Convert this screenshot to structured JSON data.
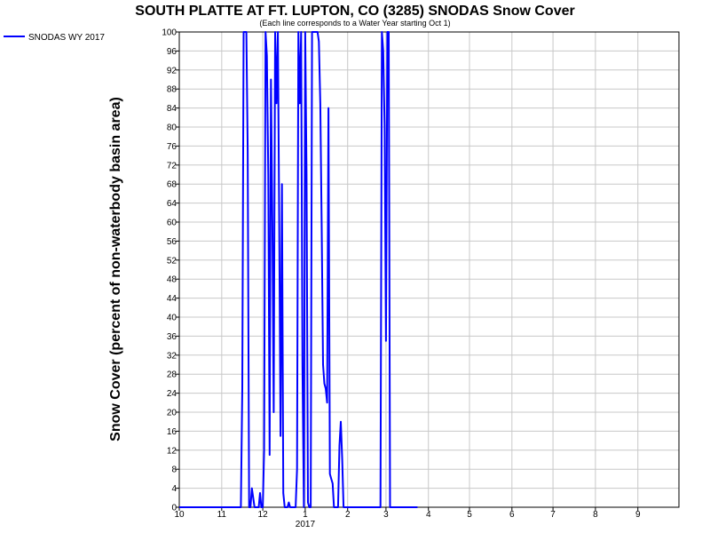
{
  "chart_data": {
    "type": "line",
    "title": "SOUTH PLATTE AT FT. LUPTON, CO (3285) SNODAS Snow Cover",
    "subtitle": "(Each line corresponds to a Water Year starting Oct 1)",
    "ylabel": "Snow Cover (percent of non-waterbody basin area)",
    "xlabel": "",
    "x_ticks": [
      "10",
      "11",
      "12",
      "1",
      "2",
      "3",
      "4",
      "5",
      "6",
      "7",
      "8",
      "9"
    ],
    "x_year_label": "2017",
    "y_ticks": [
      "0",
      "4",
      "8",
      "12",
      "16",
      "20",
      "24",
      "28",
      "32",
      "36",
      "40",
      "44",
      "48",
      "52",
      "56",
      "60",
      "64",
      "68",
      "72",
      "76",
      "80",
      "84",
      "88",
      "92",
      "96",
      "100"
    ],
    "ylim": [
      0,
      100
    ],
    "xlim": [
      "2016-10-01",
      "2017-10-01"
    ],
    "grid": true,
    "legend_position": "top-left",
    "series": [
      {
        "name": "SNODAS WY 2017",
        "color": "#0000ff",
        "x": [
          "2016-10-01",
          "2016-11-15",
          "2016-11-16",
          "2016-11-17",
          "2016-11-18",
          "2016-11-19",
          "2016-11-20",
          "2016-11-21",
          "2016-11-22",
          "2016-11-23",
          "2016-11-24",
          "2016-11-25",
          "2016-11-27",
          "2016-11-28",
          "2016-11-29",
          "2016-11-30",
          "2016-12-01",
          "2016-12-02",
          "2016-12-03",
          "2016-12-04",
          "2016-12-05",
          "2016-12-06",
          "2016-12-07",
          "2016-12-08",
          "2016-12-09",
          "2016-12-10",
          "2016-12-11",
          "2016-12-12",
          "2016-12-13",
          "2016-12-14",
          "2016-12-15",
          "2016-12-16",
          "2016-12-17",
          "2016-12-18",
          "2016-12-19",
          "2016-12-20",
          "2016-12-21",
          "2016-12-22",
          "2016-12-23",
          "2016-12-24",
          "2016-12-25",
          "2016-12-26",
          "2016-12-27",
          "2016-12-28",
          "2016-12-29",
          "2016-12-30",
          "2016-12-31",
          "2017-01-01",
          "2017-01-02",
          "2017-01-03",
          "2017-01-04",
          "2017-01-05",
          "2017-01-06",
          "2017-01-07",
          "2017-01-08",
          "2017-01-09",
          "2017-01-10",
          "2017-01-11",
          "2017-01-12",
          "2017-01-13",
          "2017-01-14",
          "2017-01-15",
          "2017-01-16",
          "2017-01-17",
          "2017-01-18",
          "2017-01-19",
          "2017-01-20",
          "2017-01-21",
          "2017-01-22",
          "2017-01-23",
          "2017-01-24",
          "2017-01-25",
          "2017-01-26",
          "2017-01-27",
          "2017-01-28",
          "2017-01-29",
          "2017-01-30",
          "2017-01-31",
          "2017-02-01",
          "2017-02-02",
          "2017-02-03",
          "2017-02-04",
          "2017-02-05",
          "2017-02-06",
          "2017-02-07",
          "2017-02-08",
          "2017-02-09",
          "2017-02-10",
          "2017-02-15",
          "2017-02-20",
          "2017-02-22",
          "2017-02-23",
          "2017-02-24",
          "2017-02-25",
          "2017-02-26",
          "2017-02-27",
          "2017-02-28",
          "2017-03-01",
          "2017-03-02",
          "2017-03-03",
          "2017-03-04",
          "2017-03-05",
          "2017-03-06",
          "2017-03-07",
          "2017-03-08",
          "2017-03-09",
          "2017-03-10",
          "2017-03-15",
          "2017-03-20",
          "2017-03-24"
        ],
        "y": [
          0,
          0,
          25,
          100,
          100,
          100,
          75,
          0,
          0,
          4,
          2,
          0,
          0,
          0,
          3,
          0,
          0,
          12,
          100,
          95,
          70,
          11,
          90,
          60,
          20,
          100,
          85,
          100,
          60,
          15,
          68,
          3,
          0,
          0,
          0,
          1,
          0,
          0,
          0,
          0,
          0,
          8,
          100,
          85,
          100,
          30,
          0,
          100,
          70,
          1,
          0,
          0,
          100,
          100,
          100,
          100,
          100,
          98,
          85,
          60,
          30,
          26,
          25,
          22,
          84,
          7,
          6,
          5,
          0,
          0,
          0,
          0,
          13,
          18,
          10,
          0,
          0,
          0,
          0,
          0,
          0,
          0,
          0,
          0,
          0,
          0,
          0,
          0,
          0,
          0,
          0,
          0,
          0,
          0,
          100,
          96,
          80,
          35,
          100,
          100,
          0,
          0,
          0,
          0,
          0,
          0,
          0,
          0,
          0,
          0
        ]
      }
    ]
  }
}
